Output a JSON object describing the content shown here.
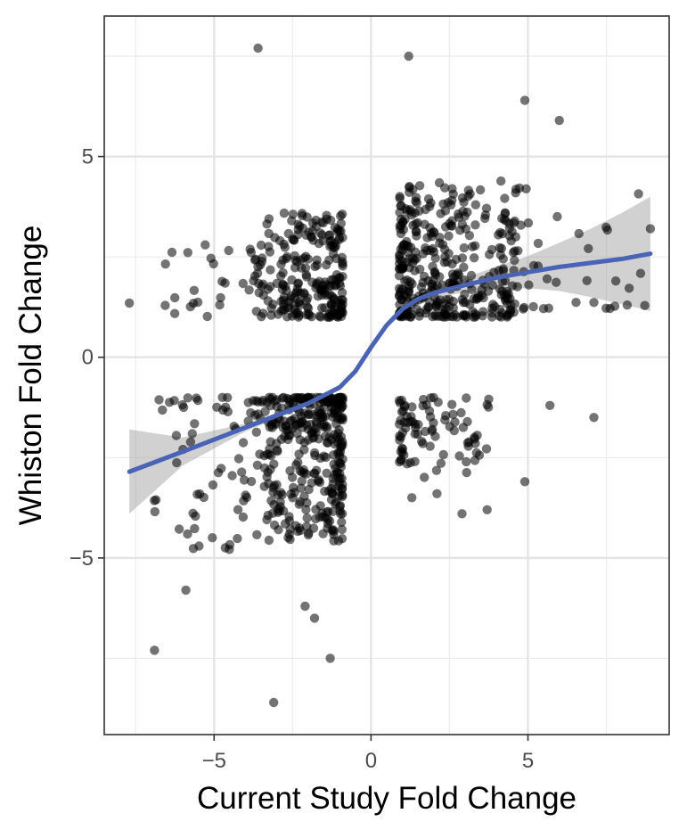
{
  "chart_data": {
    "type": "scatter",
    "title": "",
    "xlabel": "Current Study Fold Change",
    "ylabel": "Whiston Fold Change",
    "xlim": [
      -8.5,
      9.5
    ],
    "ylim": [
      -9.4,
      8.5
    ],
    "x_ticks": [
      -5,
      0,
      5
    ],
    "y_ticks": [
      -5,
      0,
      5
    ],
    "x_tick_labels": [
      "−5",
      "0",
      "5"
    ],
    "y_tick_labels": [
      "−5",
      "0",
      "5"
    ],
    "grid": true,
    "legend": "none",
    "point_color": "#000000",
    "point_opacity": 0.55,
    "smooth_color": "#4a63b5",
    "band_color": "#999999",
    "notable_points": [
      {
        "x": -3.6,
        "y": 7.7
      },
      {
        "x": 1.2,
        "y": 7.5
      },
      {
        "x": 4.9,
        "y": 6.4
      },
      {
        "x": 6.0,
        "y": 5.9
      },
      {
        "x": -7.7,
        "y": 1.35
      },
      {
        "x": -3.1,
        "y": -8.6
      },
      {
        "x": -1.3,
        "y": -7.5
      },
      {
        "x": -6.9,
        "y": -7.3
      },
      {
        "x": -2.1,
        "y": -6.2
      },
      {
        "x": -1.8,
        "y": -6.5
      },
      {
        "x": -5.9,
        "y": -5.8
      },
      {
        "x": 7.1,
        "y": -1.5
      },
      {
        "x": 4.9,
        "y": -3.1
      },
      {
        "x": 5.7,
        "y": -1.2
      },
      {
        "x": 8.9,
        "y": 3.2
      },
      {
        "x": 7.8,
        "y": 1.9
      },
      {
        "x": 2.9,
        "y": -3.9
      },
      {
        "x": 3.7,
        "y": -3.8
      },
      {
        "x": 1.3,
        "y": -3.5
      },
      {
        "x": 2.1,
        "y": -3.4
      }
    ],
    "clusters": [
      {
        "name": "upper-left",
        "x_range": [
          -3.6,
          -0.9
        ],
        "y_range": [
          1.0,
          3.6
        ],
        "n": 230
      },
      {
        "name": "upper-right",
        "x_range": [
          0.9,
          4.8
        ],
        "y_range": [
          1.0,
          4.4
        ],
        "n": 360
      },
      {
        "name": "lower-left",
        "x_range": [
          -3.2,
          -0.9
        ],
        "y_range": [
          -4.6,
          -1.0
        ],
        "n": 320
      },
      {
        "name": "lower-right",
        "x_range": [
          0.9,
          3.8
        ],
        "y_range": [
          -3.0,
          -1.0
        ],
        "n": 85
      },
      {
        "name": "far-left",
        "x_range": [
          -7.0,
          -3.2
        ],
        "y_range": [
          -4.8,
          -1.0
        ],
        "n": 90
      },
      {
        "name": "far-left-upper",
        "x_range": [
          -6.8,
          -3.6
        ],
        "y_range": [
          1.0,
          2.8
        ],
        "n": 30
      },
      {
        "name": "far-right-upper",
        "x_range": [
          4.8,
          8.8
        ],
        "y_range": [
          1.2,
          4.3
        ],
        "n": 30
      }
    ],
    "smooth_line": {
      "x": [
        -7.7,
        -6,
        -4,
        -3,
        -2,
        -1,
        -0.5,
        0,
        0.5,
        1,
        1.5,
        2,
        3,
        4,
        5,
        6,
        7,
        8,
        8.9
      ],
      "y": [
        -2.85,
        -2.35,
        -1.75,
        -1.45,
        -1.15,
        -0.75,
        -0.35,
        0.25,
        0.8,
        1.2,
        1.45,
        1.6,
        1.8,
        1.98,
        2.12,
        2.25,
        2.35,
        2.45,
        2.58
      ],
      "lower": [
        -3.9,
        -2.7,
        -1.85,
        -1.52,
        -1.2,
        -0.82,
        -0.42,
        0.18,
        0.72,
        1.1,
        1.35,
        1.48,
        1.62,
        1.7,
        1.72,
        1.65,
        1.5,
        1.32,
        1.15
      ],
      "upper": [
        -1.8,
        -2.0,
        -1.65,
        -1.38,
        -1.1,
        -0.68,
        -0.28,
        0.32,
        0.88,
        1.3,
        1.55,
        1.72,
        1.98,
        2.26,
        2.52,
        2.85,
        3.2,
        3.6,
        4.0
      ]
    }
  }
}
